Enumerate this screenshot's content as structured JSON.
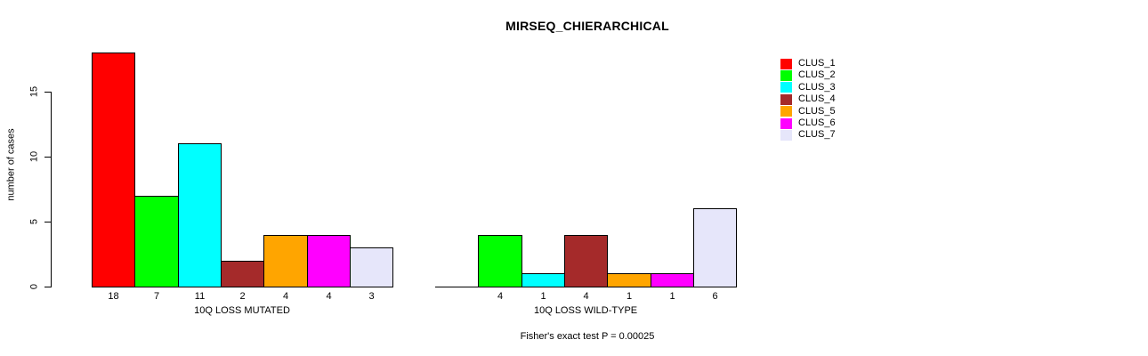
{
  "chart_data": {
    "type": "bar",
    "title": "MIRSEQ_CHIERARCHICAL",
    "ylabel": "number of cases",
    "ylim": [
      0,
      18
    ],
    "yticks": [
      0,
      5,
      10,
      15
    ],
    "grid": false,
    "legend_position": "top-right",
    "categories": [
      "10Q LOSS MUTATED",
      "10Q LOSS WILD-TYPE"
    ],
    "series": [
      {
        "name": "CLUS_1",
        "color": "#FF0000",
        "values": [
          18,
          0
        ]
      },
      {
        "name": "CLUS_2",
        "color": "#00FF00",
        "values": [
          7,
          4
        ]
      },
      {
        "name": "CLUS_3",
        "color": "#00FFFF",
        "values": [
          11,
          1
        ]
      },
      {
        "name": "CLUS_4",
        "color": "#A52A2A",
        "values": [
          2,
          4
        ]
      },
      {
        "name": "CLUS_5",
        "color": "#FFA500",
        "values": [
          4,
          1
        ]
      },
      {
        "name": "CLUS_6",
        "color": "#FF00FF",
        "values": [
          4,
          1
        ]
      },
      {
        "name": "CLUS_7",
        "color": "#E6E6FA",
        "values": [
          3,
          6
        ]
      }
    ],
    "bar_value_labels_shown": true,
    "zero_bars_drawn_as_line": true,
    "annotation": "Fisher's exact test P = 0.00025"
  }
}
